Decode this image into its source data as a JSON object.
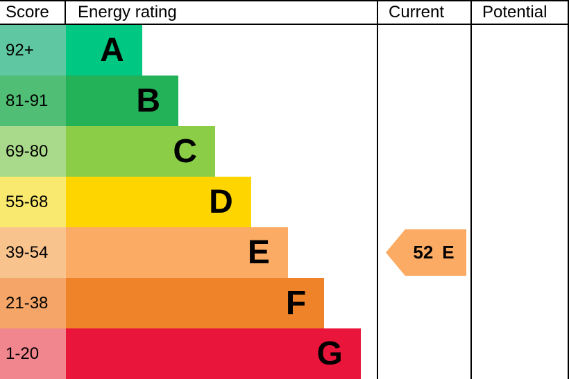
{
  "header": {
    "score_label": "Score",
    "rating_label": "Energy rating",
    "current_label": "Current",
    "potential_label": "Potential"
  },
  "chart_data": {
    "type": "bar",
    "title": "Energy rating",
    "orientation": "horizontal",
    "categories": [
      "92+",
      "81-91",
      "69-80",
      "55-68",
      "39-54",
      "21-38",
      "1-20"
    ],
    "bands": [
      {
        "score": "92+",
        "letter": "A",
        "bar_color": "#00c781",
        "score_color": "#5fc7a1",
        "width_pct": 24.4
      },
      {
        "score": "81-91",
        "letter": "B",
        "bar_color": "#23b257",
        "score_color": "#50be74",
        "width_pct": 36.0
      },
      {
        "score": "69-80",
        "letter": "C",
        "bar_color": "#8bcd47",
        "score_color": "#a9d98a",
        "width_pct": 47.8
      },
      {
        "score": "55-68",
        "letter": "D",
        "bar_color": "#ffd500",
        "score_color": "#f9e96e",
        "width_pct": 59.3
      },
      {
        "score": "39-54",
        "letter": "E",
        "bar_color": "#fbab63",
        "score_color": "#f9c38e",
        "width_pct": 71.1
      },
      {
        "score": "21-38",
        "letter": "F",
        "bar_color": "#ee8329",
        "score_color": "#f4a567",
        "width_pct": 82.7
      },
      {
        "score": "1-20",
        "letter": "G",
        "bar_color": "#e9153b",
        "score_color": "#f2868e",
        "width_pct": 94.4
      }
    ],
    "current": {
      "value": "52",
      "letter": "E",
      "arrow_color": "#fbab63"
    },
    "potential": {
      "value": "",
      "letter": ""
    }
  }
}
